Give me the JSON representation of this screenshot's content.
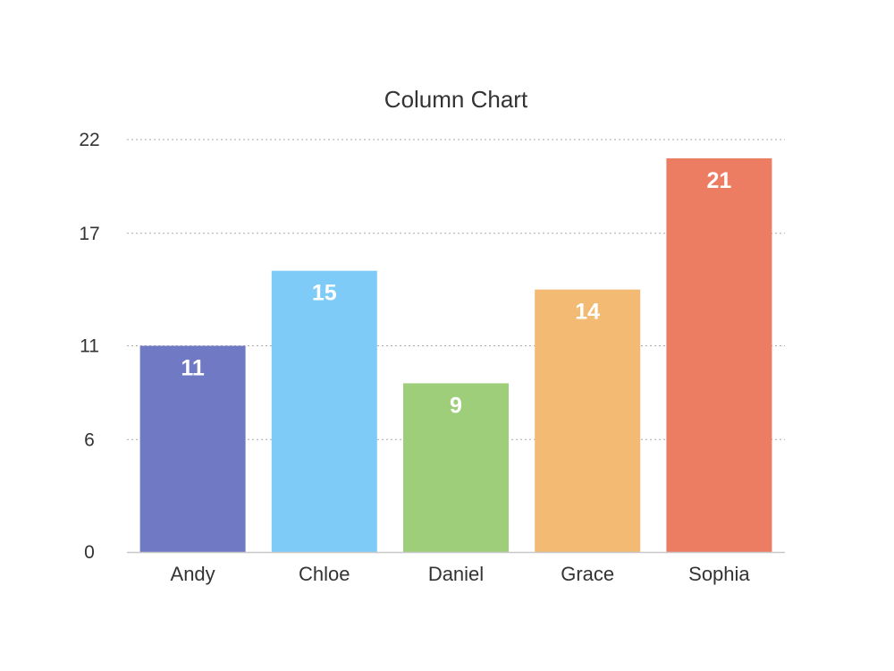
{
  "chart_data": {
    "type": "bar",
    "title": "Column Chart",
    "xlabel": "",
    "ylabel": "",
    "categories": [
      "Andy",
      "Chloe",
      "Daniel",
      "Grace",
      "Sophia"
    ],
    "values": [
      11,
      15,
      9,
      14,
      21
    ],
    "colors": [
      "#7079c4",
      "#7ecbf8",
      "#9ece7a",
      "#f2ba72",
      "#ec7c62"
    ],
    "y_ticks": [
      0,
      6,
      11,
      17,
      22
    ],
    "ylim": [
      0,
      22
    ],
    "grid": true,
    "legend": "none",
    "data_labels": true
  },
  "style": {
    "gridline_color": "#aaaaaa",
    "axis_color": "#c8c8c8",
    "text_color": "#333333",
    "label_color": "#ffffff"
  }
}
